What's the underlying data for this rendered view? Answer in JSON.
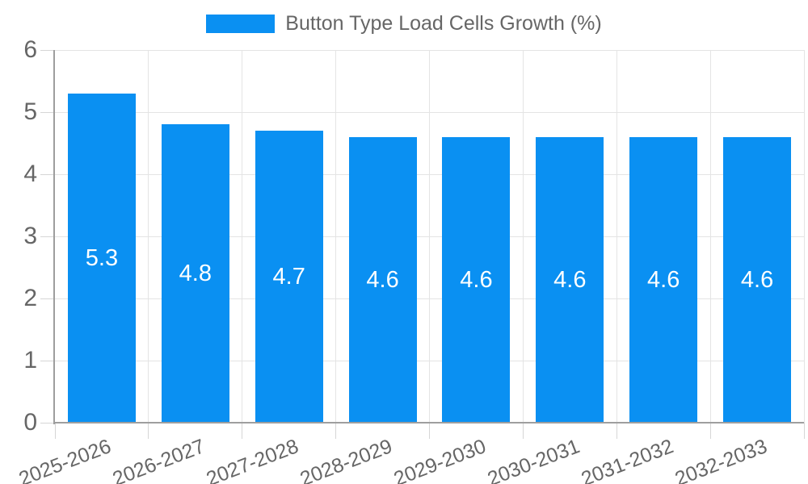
{
  "legend": {
    "label": "Button Type Load Cells Growth (%)"
  },
  "chart_data": {
    "type": "bar",
    "title": "Button Type Load Cells Growth (%)",
    "legend_position": "top",
    "grid": true,
    "categories": [
      "2025-2026",
      "2026-2027",
      "2027-2028",
      "2028-2029",
      "2029-2030",
      "2030-2031",
      "2031-2032",
      "2032-2033"
    ],
    "series": [
      {
        "name": "Button Type Load Cells Growth (%)",
        "values": [
          5.3,
          4.8,
          4.7,
          4.6,
          4.6,
          4.6,
          4.6,
          4.6
        ]
      }
    ],
    "value_labels": [
      "5.3",
      "4.8",
      "4.7",
      "4.6",
      "4.6",
      "4.6",
      "4.6",
      "4.6"
    ],
    "xlabel": "",
    "ylabel": "",
    "ylim": [
      0,
      6
    ],
    "y_ticks": [
      0,
      1,
      2,
      3,
      4,
      5,
      6
    ]
  },
  "colors": {
    "bar": "#0a90f2",
    "axis": "#9e9e9e",
    "grid": "#e4e4e4",
    "tick": "#d6d6d6",
    "text": "#666666",
    "value_label": "#ffffff",
    "background": "#ffffff"
  }
}
